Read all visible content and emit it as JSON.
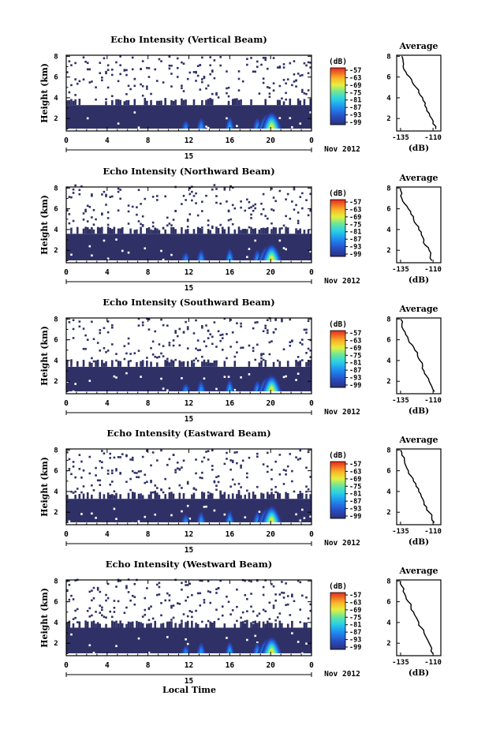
{
  "figure": {
    "xlabel_bottom": "Local Time",
    "date_label": "15",
    "month_label": "Nov 2012"
  },
  "chart_data": [
    {
      "type": "heatmap",
      "title": "Echo Intensity (Vertical Beam)",
      "ylabel": "Height (km)",
      "yticks": [
        "2",
        "4",
        "6",
        "8"
      ],
      "xticks": [
        "0",
        "4",
        "8",
        "12",
        "16",
        "20",
        "0"
      ],
      "xlim": [
        0,
        24
      ],
      "ylim": [
        0.8,
        8.1
      ],
      "colorbar": {
        "unit": "(dB)",
        "ticks": [
          "-57",
          "-63",
          "-69",
          "-75",
          "-81",
          "-87",
          "-93",
          "-99"
        ]
      },
      "echo_top_km": 3.3,
      "convective_cells": [
        {
          "time": 11.7,
          "top_km": 2.1,
          "peak_db": -87
        },
        {
          "time": 13.2,
          "top_km": 2.6,
          "peak_db": -85
        },
        {
          "time": 16.0,
          "top_km": 2.8,
          "peak_db": -83
        },
        {
          "time": 18.7,
          "top_km": 2.6,
          "peak_db": -85
        },
        {
          "time": 19.7,
          "top_km": 3.3,
          "peak_db": -77
        },
        {
          "time": 20.1,
          "top_km": 3.7,
          "peak_db": -69
        }
      ],
      "profile": {
        "title": "Average",
        "xlabel": "(dB)",
        "xticks": [
          "-135",
          "-110"
        ],
        "yticks": [
          "2",
          "4",
          "6",
          "8"
        ],
        "xlim": [
          -138,
          -104
        ],
        "ylim": [
          0.8,
          8.1
        ],
        "height_km": [
          1.0,
          1.5,
          2.0,
          2.5,
          3.0,
          3.5,
          4.0,
          4.5,
          5.0,
          5.5,
          6.0,
          6.5,
          7.0,
          7.5,
          8.0
        ],
        "db": [
          -108,
          -110,
          -111,
          -113,
          -115,
          -116,
          -118,
          -121,
          -123,
          -126,
          -128,
          -131,
          -133,
          -133,
          -134
        ]
      }
    },
    {
      "type": "heatmap",
      "title": "Echo Intensity (Northward Beam)",
      "ylabel": "Height (km)",
      "yticks": [
        "2",
        "4",
        "6",
        "8"
      ],
      "xticks": [
        "0",
        "4",
        "8",
        "12",
        "16",
        "20",
        "0"
      ],
      "xlim": [
        0,
        24
      ],
      "ylim": [
        0.8,
        8.1
      ],
      "colorbar": {
        "unit": "(dB)",
        "ticks": [
          "-57",
          "-63",
          "-69",
          "-75",
          "-81",
          "-87",
          "-93",
          "-99"
        ]
      },
      "echo_top_km": 3.6,
      "convective_cells": [
        {
          "time": 11.7,
          "top_km": 2.1,
          "peak_db": -87
        },
        {
          "time": 13.2,
          "top_km": 2.6,
          "peak_db": -85
        },
        {
          "time": 16.0,
          "top_km": 2.8,
          "peak_db": -83
        },
        {
          "time": 18.7,
          "top_km": 2.6,
          "peak_db": -85
        },
        {
          "time": 19.7,
          "top_km": 3.3,
          "peak_db": -77
        },
        {
          "time": 20.1,
          "top_km": 3.7,
          "peak_db": -69
        }
      ],
      "profile": {
        "title": "Average",
        "xlabel": "(dB)",
        "xticks": [
          "-135",
          "-110"
        ],
        "yticks": [
          "2",
          "4",
          "6",
          "8"
        ],
        "xlim": [
          -138,
          -104
        ],
        "ylim": [
          0.8,
          8.1
        ],
        "height_km": [
          1.0,
          1.5,
          2.0,
          2.5,
          3.0,
          3.5,
          4.0,
          4.5,
          5.0,
          5.5,
          6.0,
          6.5,
          7.0,
          7.5,
          8.0
        ],
        "db": [
          -111,
          -112,
          -113,
          -116,
          -117,
          -119,
          -121,
          -123,
          -125,
          -127,
          -129,
          -132,
          -134,
          -134,
          -135
        ]
      }
    },
    {
      "type": "heatmap",
      "title": "Echo Intensity (Southward Beam)",
      "ylabel": "Height (km)",
      "yticks": [
        "2",
        "4",
        "6",
        "8"
      ],
      "xticks": [
        "0",
        "4",
        "8",
        "12",
        "16",
        "20",
        "0"
      ],
      "xlim": [
        0,
        24
      ],
      "ylim": [
        0.8,
        8.1
      ],
      "colorbar": {
        "unit": "(dB)",
        "ticks": [
          "-57",
          "-63",
          "-69",
          "-75",
          "-81",
          "-87",
          "-93",
          "-99"
        ]
      },
      "echo_top_km": 3.4,
      "convective_cells": [
        {
          "time": 11.7,
          "top_km": 2.1,
          "peak_db": -87
        },
        {
          "time": 13.2,
          "top_km": 2.6,
          "peak_db": -85
        },
        {
          "time": 16.0,
          "top_km": 2.8,
          "peak_db": -83
        },
        {
          "time": 18.7,
          "top_km": 2.6,
          "peak_db": -85
        },
        {
          "time": 19.7,
          "top_km": 3.3,
          "peak_db": -77
        },
        {
          "time": 20.1,
          "top_km": 3.7,
          "peak_db": -69
        }
      ],
      "profile": {
        "title": "Average",
        "xlabel": "(dB)",
        "xticks": [
          "-135",
          "-110"
        ],
        "yticks": [
          "2",
          "4",
          "6",
          "8"
        ],
        "xlim": [
          -138,
          -104
        ],
        "ylim": [
          0.8,
          8.1
        ],
        "height_km": [
          1.0,
          1.5,
          2.0,
          2.5,
          3.0,
          3.5,
          4.0,
          4.5,
          5.0,
          5.5,
          6.0,
          6.5,
          7.0,
          7.5,
          8.0
        ],
        "db": [
          -109,
          -111,
          -113,
          -115,
          -117,
          -118,
          -120,
          -122,
          -124,
          -126,
          -129,
          -131,
          -133,
          -134,
          -135
        ]
      }
    },
    {
      "type": "heatmap",
      "title": "Echo Intensity (Eastward Beam)",
      "ylabel": "Height (km)",
      "yticks": [
        "2",
        "4",
        "6",
        "8"
      ],
      "xticks": [
        "0",
        "4",
        "8",
        "12",
        "16",
        "20",
        "0"
      ],
      "xlim": [
        0,
        24
      ],
      "ylim": [
        0.8,
        8.1
      ],
      "colorbar": {
        "unit": "(dB)",
        "ticks": [
          "-57",
          "-63",
          "-69",
          "-75",
          "-81",
          "-87",
          "-93",
          "-99"
        ]
      },
      "echo_top_km": 3.3,
      "convective_cells": [
        {
          "time": 11.7,
          "top_km": 2.1,
          "peak_db": -87
        },
        {
          "time": 13.2,
          "top_km": 2.6,
          "peak_db": -85
        },
        {
          "time": 16.0,
          "top_km": 2.8,
          "peak_db": -83
        },
        {
          "time": 18.7,
          "top_km": 2.6,
          "peak_db": -85
        },
        {
          "time": 19.7,
          "top_km": 3.3,
          "peak_db": -77
        },
        {
          "time": 20.1,
          "top_km": 3.7,
          "peak_db": -69
        }
      ],
      "profile": {
        "title": "Average",
        "xlabel": "(dB)",
        "xticks": [
          "-135",
          "-110"
        ],
        "yticks": [
          "2",
          "4",
          "6",
          "8"
        ],
        "xlim": [
          -138,
          -104
        ],
        "ylim": [
          0.8,
          8.1
        ],
        "height_km": [
          1.0,
          1.5,
          2.0,
          2.5,
          3.0,
          3.5,
          4.0,
          4.5,
          5.0,
          5.5,
          6.0,
          6.5,
          7.0,
          7.5,
          8.0
        ],
        "db": [
          -109,
          -111,
          -113,
          -115,
          -117,
          -119,
          -121,
          -123,
          -125,
          -127,
          -129,
          -131,
          -132,
          -134,
          -135
        ]
      }
    },
    {
      "type": "heatmap",
      "title": "Echo Intensity (Westward Beam)",
      "ylabel": "Height (km)",
      "yticks": [
        "2",
        "4",
        "6",
        "8"
      ],
      "xticks": [
        "0",
        "4",
        "8",
        "12",
        "16",
        "20",
        "0"
      ],
      "xlim": [
        0,
        24
      ],
      "ylim": [
        0.8,
        8.1
      ],
      "colorbar": {
        "unit": "(dB)",
        "ticks": [
          "-57",
          "-63",
          "-69",
          "-75",
          "-81",
          "-87",
          "-93",
          "-99"
        ]
      },
      "echo_top_km": 3.5,
      "convective_cells": [
        {
          "time": 11.7,
          "top_km": 2.1,
          "peak_db": -87
        },
        {
          "time": 13.2,
          "top_km": 2.6,
          "peak_db": -85
        },
        {
          "time": 16.0,
          "top_km": 2.8,
          "peak_db": -83
        },
        {
          "time": 18.7,
          "top_km": 2.6,
          "peak_db": -85
        },
        {
          "time": 19.7,
          "top_km": 3.3,
          "peak_db": -77
        },
        {
          "time": 20.1,
          "top_km": 3.7,
          "peak_db": -69
        }
      ],
      "profile": {
        "title": "Average",
        "xlabel": "(dB)",
        "xticks": [
          "-135",
          "-110"
        ],
        "yticks": [
          "2",
          "4",
          "6",
          "8"
        ],
        "xlim": [
          -138,
          -104
        ],
        "ylim": [
          0.8,
          8.1
        ],
        "height_km": [
          1.0,
          1.5,
          2.0,
          2.5,
          3.0,
          3.5,
          4.0,
          4.5,
          5.0,
          5.5,
          6.0,
          6.5,
          7.0,
          7.5,
          8.0
        ],
        "db": [
          -110,
          -111,
          -113,
          -115,
          -117,
          -119,
          -121,
          -123,
          -125,
          -127,
          -129,
          -131,
          -133,
          -134,
          -135
        ]
      }
    }
  ]
}
